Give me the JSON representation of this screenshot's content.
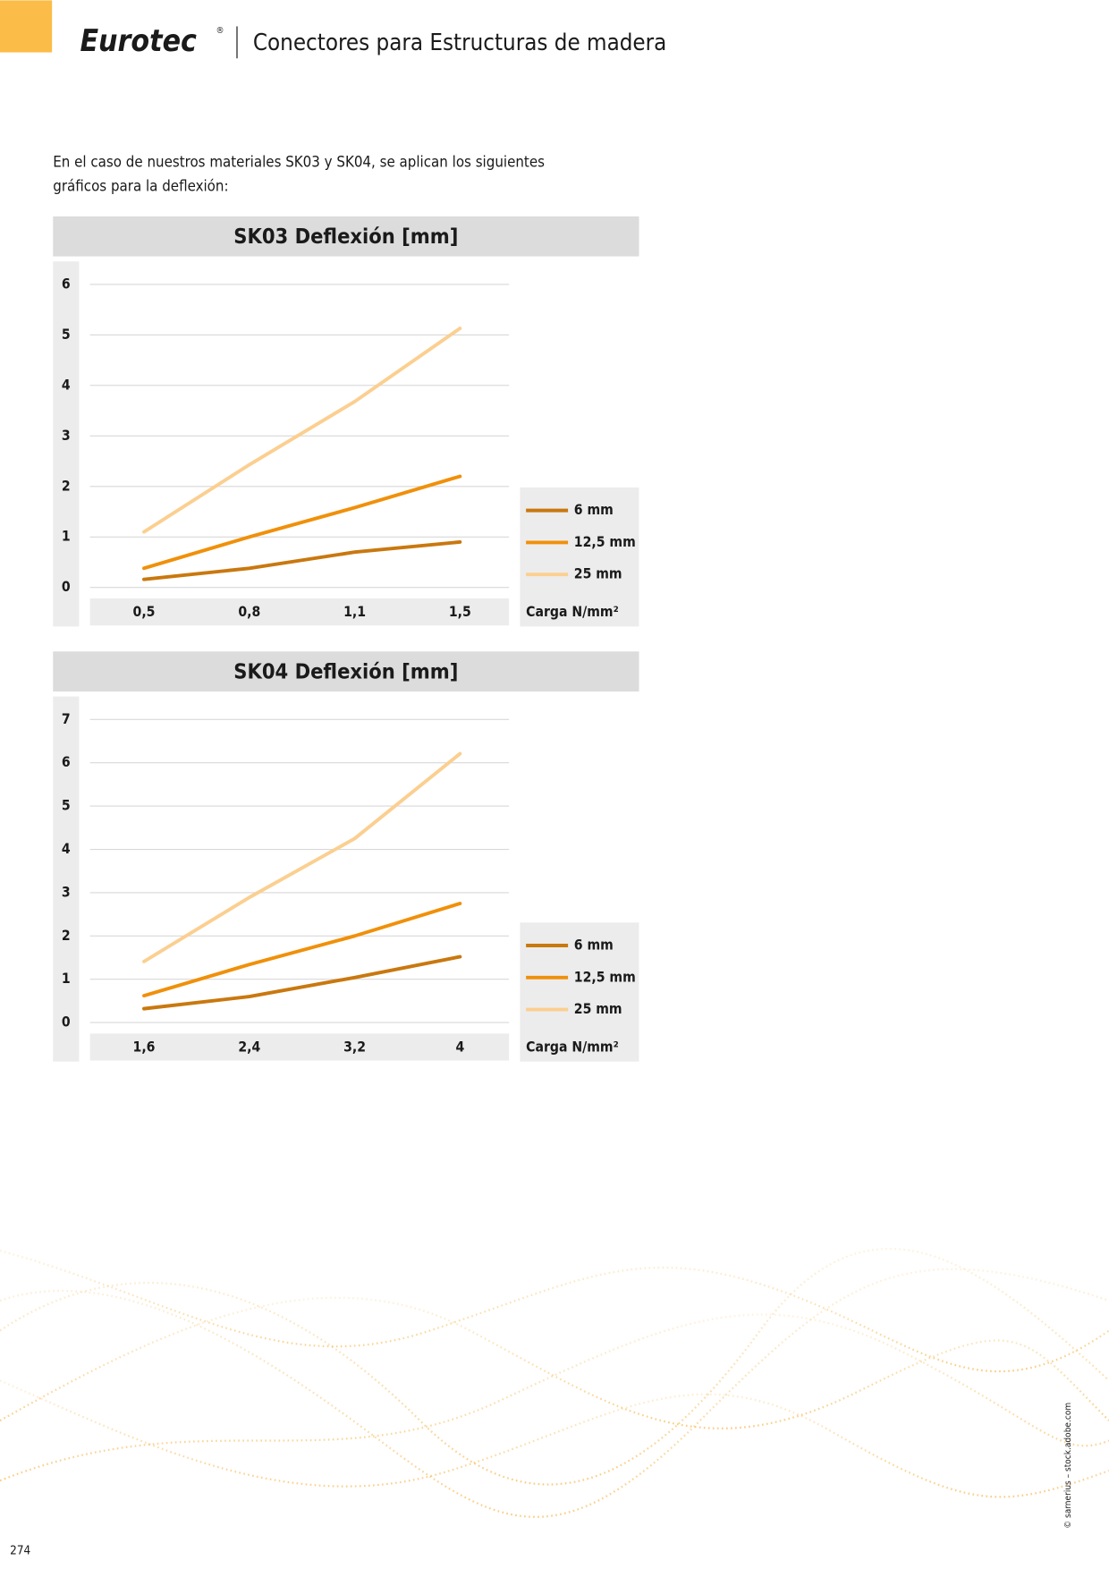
{
  "header": {
    "brand": "Eurotec",
    "mark": "®",
    "title": "Conectores para Estructuras de madera"
  },
  "intro": [
    "En el caso de nuestros materiales SK03 y SK04, se aplican los siguientes",
    "gráficos para la deflexión:"
  ],
  "chart_data": [
    {
      "type": "line",
      "title": "SK03 Deflexión [mm]",
      "x_label": "Carga N/mm²",
      "categories": [
        "0,5",
        "0,8",
        "1,1",
        "1,5"
      ],
      "series": [
        {
          "name": "6 mm",
          "color": "#c9780f",
          "values": [
            0.16,
            0.38,
            0.7,
            0.9
          ]
        },
        {
          "name": "12,5 mm",
          "color": "#f0900a",
          "values": [
            0.38,
            1.0,
            1.58,
            2.2
          ]
        },
        {
          "name": "25 mm",
          "color": "#fbcf90",
          "values": [
            1.1,
            2.43,
            3.68,
            5.13
          ]
        }
      ],
      "ylim": [
        0,
        6
      ],
      "yticks": [
        0,
        1,
        2,
        3,
        4,
        5,
        6
      ],
      "grid": true,
      "legend": "right"
    },
    {
      "type": "line",
      "title": "SK04 Deflexión [mm]",
      "x_label": "Carga N/mm²",
      "categories": [
        "1,6",
        "2,4",
        "3,2",
        "4"
      ],
      "series": [
        {
          "name": "6 mm",
          "color": "#c9780f",
          "values": [
            0.32,
            0.6,
            1.04,
            1.52
          ]
        },
        {
          "name": "12,5 mm",
          "color": "#f0900a",
          "values": [
            0.62,
            1.34,
            2.0,
            2.75
          ]
        },
        {
          "name": "25 mm",
          "color": "#fbcf90",
          "values": [
            1.41,
            2.89,
            4.25,
            6.21
          ]
        }
      ],
      "ylim": [
        0,
        7
      ],
      "yticks": [
        0,
        1,
        2,
        3,
        4,
        5,
        6,
        7
      ],
      "grid": true,
      "legend": "right"
    }
  ],
  "footer": {
    "page": "274",
    "credit": "© sarnerius – stock.adobe.com"
  }
}
